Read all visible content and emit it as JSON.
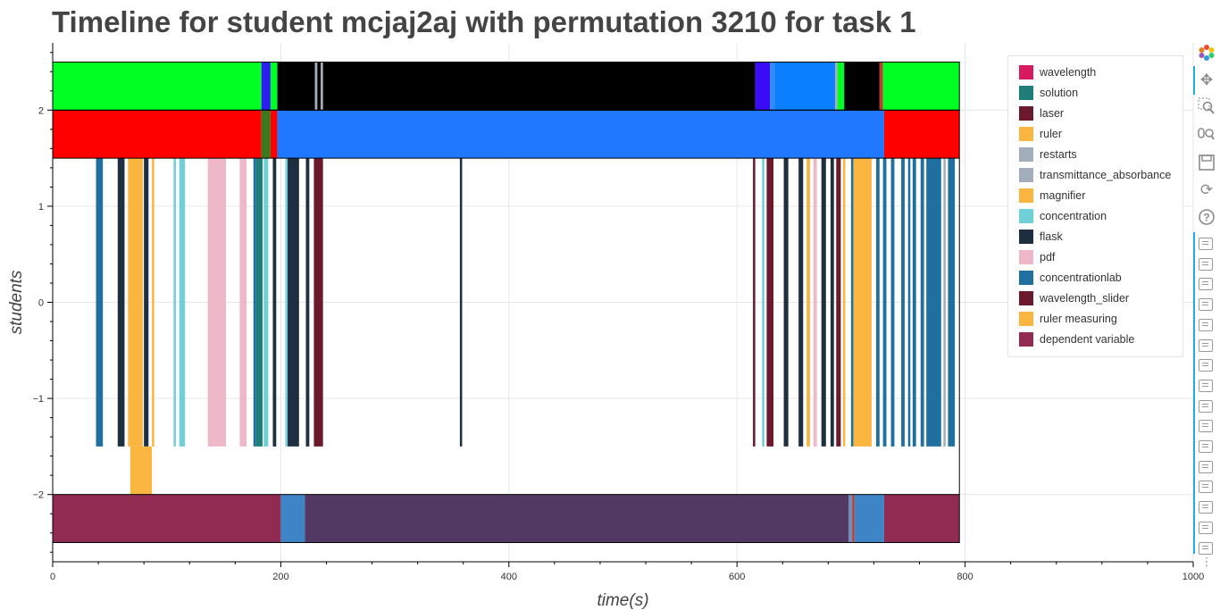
{
  "chart_data": {
    "type": "timeline",
    "title": "Timeline for student mcjaj2aj with permutation 3210 for task 1",
    "xlabel": "time(s)",
    "ylabel": "students",
    "xlim": [
      0,
      1000
    ],
    "ylim": [
      -2.7,
      2.7
    ],
    "x_ticks": [
      "0",
      "200",
      "400",
      "600",
      "800",
      "1000"
    ],
    "y_ticks": [
      "−2",
      "−1",
      "0",
      "1",
      "2"
    ],
    "legend_position": "top-right",
    "grid": true,
    "legend": [
      {
        "label": "wavelength",
        "color": "#d81b60"
      },
      {
        "label": "solution",
        "color": "#1f7f78"
      },
      {
        "label": "laser",
        "color": "#6b1a2e"
      },
      {
        "label": "ruler",
        "color": "#fbb640"
      },
      {
        "label": "restarts",
        "color": "#a3aebd"
      },
      {
        "label": "transmittance_absorbance",
        "color": "#a3aebd"
      },
      {
        "label": "magnifier",
        "color": "#fbb640"
      },
      {
        "label": "concentration",
        "color": "#6fd0d8"
      },
      {
        "label": "flask",
        "color": "#1e2f42"
      },
      {
        "label": "pdf",
        "color": "#efb8c8"
      },
      {
        "label": "concentrationlab",
        "color": "#1f6fa0"
      },
      {
        "label": "wavelength_slider",
        "color": "#6b1a2e"
      },
      {
        "label": "ruler measuring",
        "color": "#fbb640"
      },
      {
        "label": "dependent variable",
        "color": "#922b52"
      }
    ],
    "rows": [
      {
        "y0": 2.0,
        "y1": 2.5,
        "segments": [
          {
            "x0": 0,
            "x1": 183,
            "color": "#00ff22"
          },
          {
            "x0": 183,
            "x1": 191,
            "color": "#2a1ef0"
          },
          {
            "x0": 191,
            "x1": 197,
            "color": "#00ff22"
          },
          {
            "x0": 197,
            "x1": 230,
            "color": "#000000"
          },
          {
            "x0": 230,
            "x1": 232,
            "color": "#a3aebd"
          },
          {
            "x0": 232,
            "x1": 235,
            "color": "#000000"
          },
          {
            "x0": 235,
            "x1": 237,
            "color": "#a3aebd"
          },
          {
            "x0": 237,
            "x1": 616,
            "color": "#000000"
          },
          {
            "x0": 616,
            "x1": 629,
            "color": "#3a0cf5"
          },
          {
            "x0": 629,
            "x1": 633,
            "color": "#2f8bff"
          },
          {
            "x0": 633,
            "x1": 686,
            "color": "#0a7fff"
          },
          {
            "x0": 686,
            "x1": 688,
            "color": "#a3aebd"
          },
          {
            "x0": 688,
            "x1": 694,
            "color": "#00ff22"
          },
          {
            "x0": 694,
            "x1": 725,
            "color": "#000000"
          },
          {
            "x0": 725,
            "x1": 728,
            "color": "#c0392b"
          },
          {
            "x0": 728,
            "x1": 795,
            "color": "#00ff22"
          }
        ]
      },
      {
        "y0": 1.5,
        "y1": 2.0,
        "segments": [
          {
            "x0": 0,
            "x1": 183,
            "color": "#ff0000"
          },
          {
            "x0": 183,
            "x1": 191,
            "color": "#3a7a1d"
          },
          {
            "x0": 191,
            "x1": 197,
            "color": "#ff0000"
          },
          {
            "x0": 197,
            "x1": 729,
            "color": "#1f78ff"
          },
          {
            "x0": 729,
            "x1": 795,
            "color": "#ff0000"
          }
        ]
      },
      {
        "y0": -1.5,
        "y1": 1.5,
        "segments": [
          {
            "x0": 38,
            "x1": 44,
            "color": "#1f6fa0"
          },
          {
            "x0": 57,
            "x1": 63,
            "color": "#1e2f42"
          },
          {
            "x0": 66,
            "x1": 79,
            "color": "#fbb640"
          },
          {
            "x0": 80,
            "x1": 84,
            "color": "#1e2f42"
          },
          {
            "x0": 87,
            "x1": 89,
            "color": "#fbb640"
          },
          {
            "x0": 106,
            "x1": 108,
            "color": "#6fd0d8"
          },
          {
            "x0": 111,
            "x1": 116,
            "color": "#6fd0d8"
          },
          {
            "x0": 136,
            "x1": 152,
            "color": "#efb8c8"
          },
          {
            "x0": 164,
            "x1": 170,
            "color": "#efb8c8"
          },
          {
            "x0": 176,
            "x1": 178,
            "color": "#1f6fa0"
          },
          {
            "x0": 178,
            "x1": 184,
            "color": "#1f7f78"
          },
          {
            "x0": 185,
            "x1": 189,
            "color": "#6fd0d8"
          },
          {
            "x0": 193,
            "x1": 196,
            "color": "#1e2f42"
          },
          {
            "x0": 204,
            "x1": 206,
            "color": "#6fd0d8"
          },
          {
            "x0": 206,
            "x1": 216,
            "color": "#1e2f42"
          },
          {
            "x0": 222,
            "x1": 225,
            "color": "#1e2f42"
          },
          {
            "x0": 229,
            "x1": 237,
            "color": "#6b1a2e"
          },
          {
            "x0": 357,
            "x1": 359,
            "color": "#1e2f42"
          },
          {
            "x0": 614,
            "x1": 616,
            "color": "#6b1a2e"
          },
          {
            "x0": 622,
            "x1": 624,
            "color": "#6fd0d8"
          },
          {
            "x0": 626,
            "x1": 632,
            "color": "#6b1a2e"
          },
          {
            "x0": 641,
            "x1": 645,
            "color": "#1e2f42"
          },
          {
            "x0": 654,
            "x1": 658,
            "color": "#1e2f42"
          },
          {
            "x0": 661,
            "x1": 664,
            "color": "#fbb640"
          },
          {
            "x0": 667,
            "x1": 670,
            "color": "#efb8c8"
          },
          {
            "x0": 674,
            "x1": 678,
            "color": "#1e2f42"
          },
          {
            "x0": 682,
            "x1": 685,
            "color": "#1e2f42"
          },
          {
            "x0": 687,
            "x1": 691,
            "color": "#6b1a2e"
          },
          {
            "x0": 693,
            "x1": 695,
            "color": "#fbb640"
          },
          {
            "x0": 700,
            "x1": 702,
            "color": "#1f6fa0"
          },
          {
            "x0": 702,
            "x1": 718,
            "color": "#fbb640"
          },
          {
            "x0": 722,
            "x1": 725,
            "color": "#1f6fa0"
          },
          {
            "x0": 728,
            "x1": 731,
            "color": "#1f6fa0"
          },
          {
            "x0": 735,
            "x1": 738,
            "color": "#1f6fa0"
          },
          {
            "x0": 744,
            "x1": 747,
            "color": "#1f6fa0"
          },
          {
            "x0": 750,
            "x1": 752,
            "color": "#1f6fa0"
          },
          {
            "x0": 754,
            "x1": 757,
            "color": "#1f6fa0"
          },
          {
            "x0": 761,
            "x1": 764,
            "color": "#1f6fa0"
          },
          {
            "x0": 766,
            "x1": 779,
            "color": "#1f6fa0"
          },
          {
            "x0": 781,
            "x1": 783,
            "color": "#a3aebd"
          },
          {
            "x0": 785,
            "x1": 791,
            "color": "#1f6fa0"
          }
        ]
      },
      {
        "y0": -2.0,
        "y1": -1.5,
        "segments": [
          {
            "x0": 68,
            "x1": 87,
            "color": "#fbb640"
          }
        ]
      },
      {
        "y0": -2.5,
        "y1": -2.0,
        "segments": [
          {
            "x0": 0,
            "x1": 200,
            "color": "#922b52"
          },
          {
            "x0": 200,
            "x1": 221,
            "color": "#3d85c6"
          },
          {
            "x0": 221,
            "x1": 698,
            "color": "#513963"
          },
          {
            "x0": 698,
            "x1": 701,
            "color": "#6f8fbf"
          },
          {
            "x0": 701,
            "x1": 703,
            "color": "#c0392b"
          },
          {
            "x0": 703,
            "x1": 729,
            "color": "#3d85c6"
          },
          {
            "x0": 729,
            "x1": 795,
            "color": "#922b52"
          }
        ]
      }
    ]
  },
  "toolbar": {
    "tools": [
      "bokeh-logo-icon",
      "pan-icon",
      "box-zoom-icon",
      "wheel-zoom-icon",
      "save-icon",
      "reset-icon",
      "help-icon"
    ],
    "hover_tool_count": 16,
    "more": "⋮"
  }
}
